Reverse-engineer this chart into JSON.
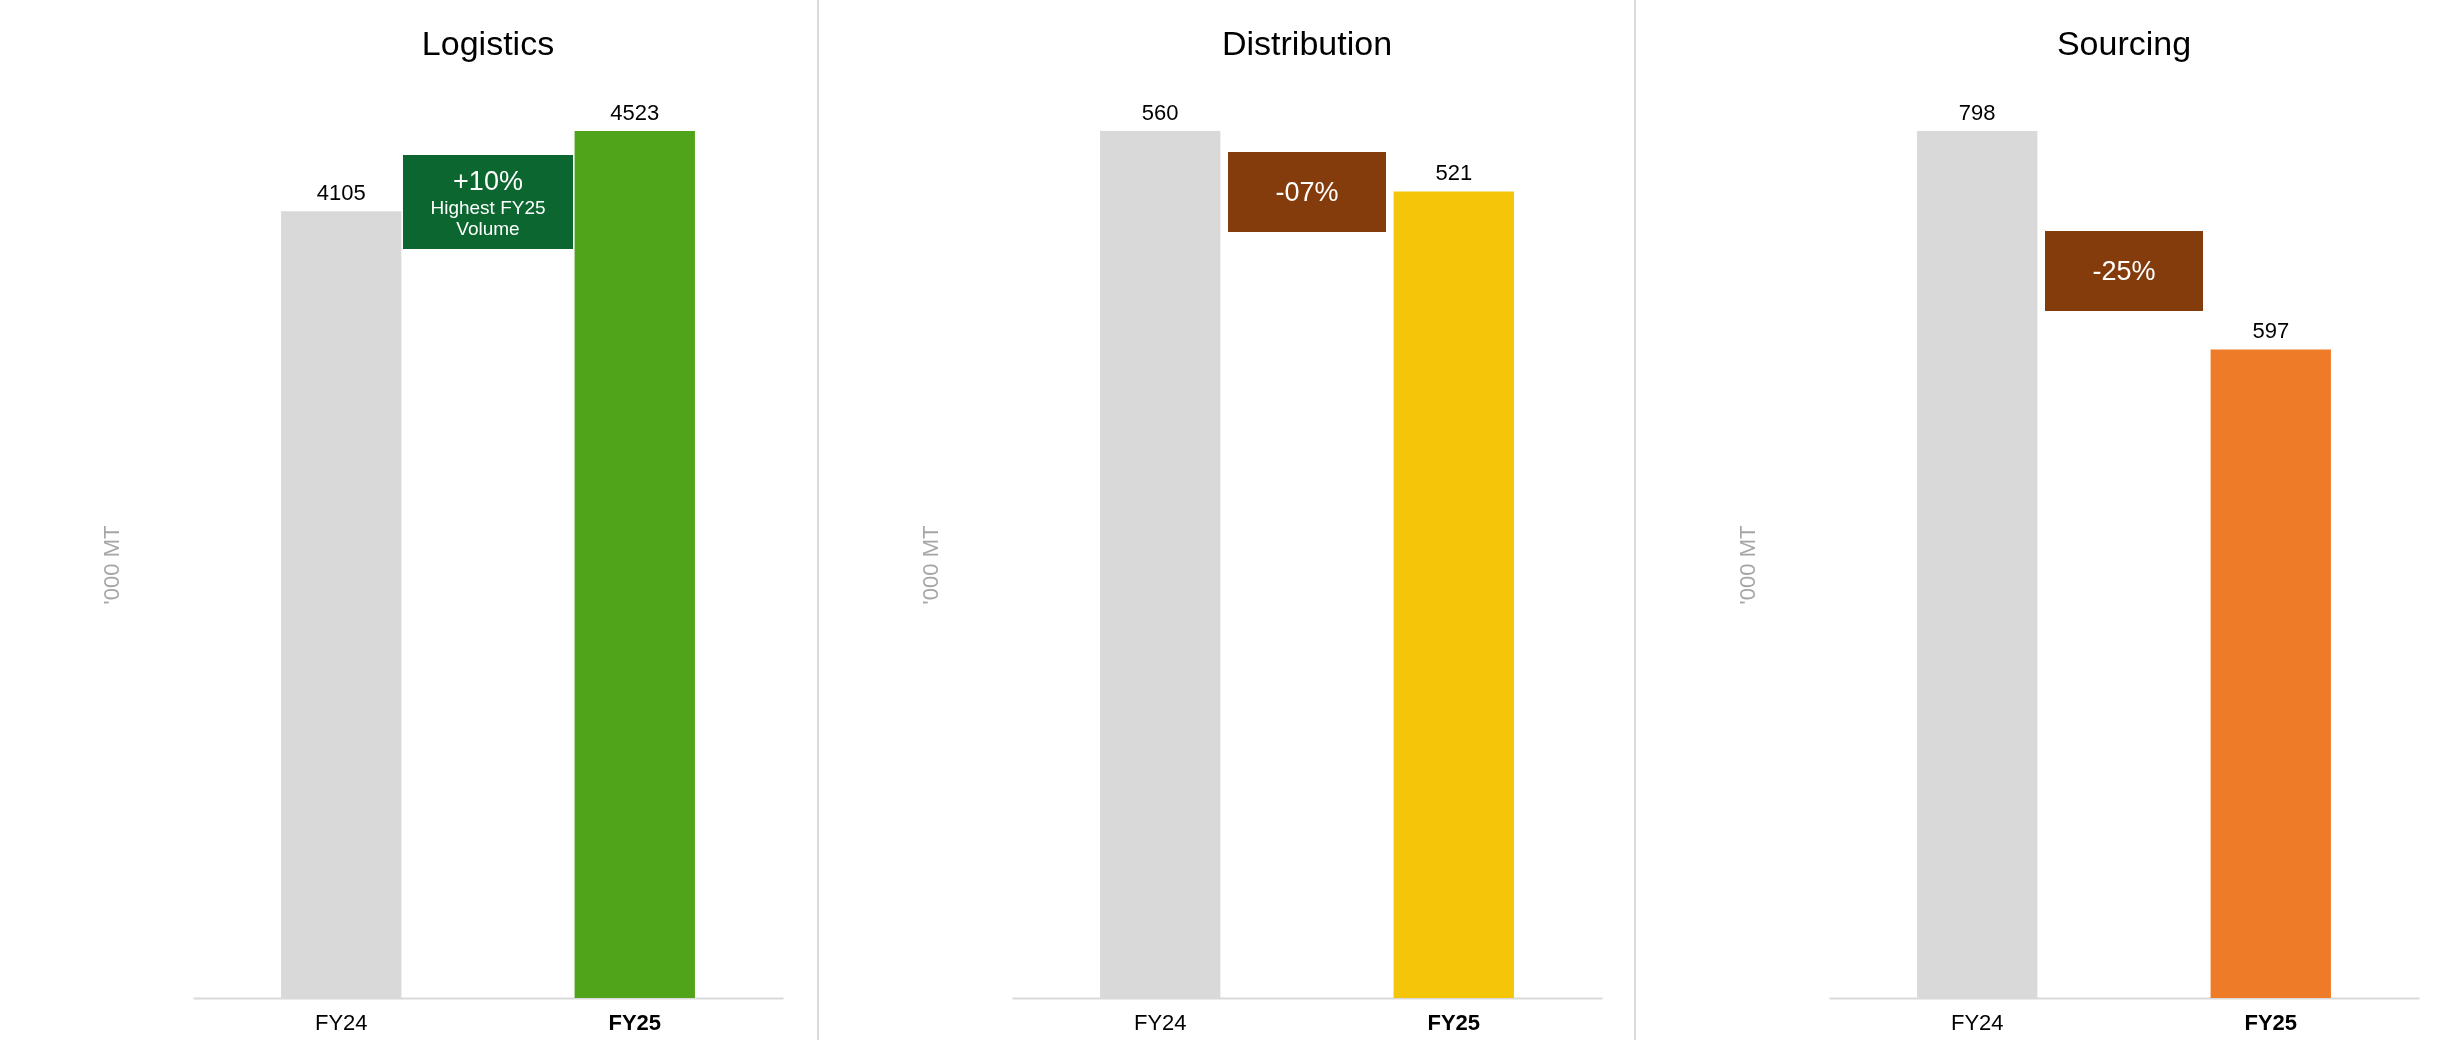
{
  "chart_data": [
    {
      "type": "bar",
      "title": "Logistics",
      "ylabel": "'000 MT",
      "categories": [
        "FY24",
        "FY25"
      ],
      "values": [
        4105,
        4523
      ],
      "colors": [
        "#d9d9d9",
        "#4fa41a"
      ],
      "data_labels": true,
      "tick_labels": "x",
      "annotations": [
        "+10%",
        "Highest FY25 Volume"
      ]
    },
    {
      "type": "bar",
      "title": "Distribution",
      "ylabel": "'000 MT",
      "categories": [
        "FY24",
        "FY25"
      ],
      "values": [
        560,
        521
      ],
      "colors": [
        "#d9d9d9",
        "#f4c508"
      ],
      "data_labels": true,
      "tick_labels": "x",
      "annotations": [
        "-07%"
      ]
    },
    {
      "type": "bar",
      "title": "Sourcing",
      "ylabel": "'000 MT",
      "categories": [
        "FY24",
        "FY25"
      ],
      "values": [
        798,
        597
      ],
      "colors": [
        "#d9d9d9",
        "#ee7b27"
      ],
      "data_labels": true,
      "tick_labels": "x",
      "annotations": [
        "-25%"
      ]
    }
  ]
}
